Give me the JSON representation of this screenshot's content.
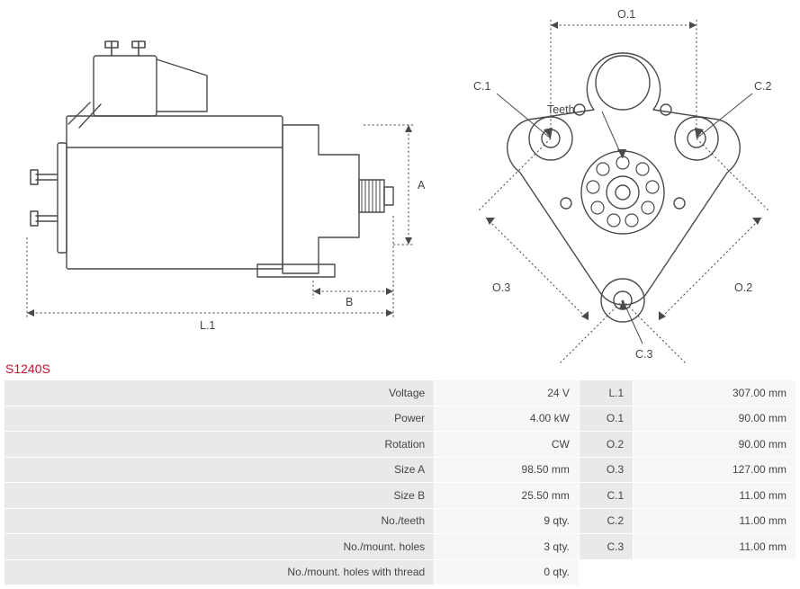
{
  "part_number": "S1240S",
  "diagram": {
    "stroke": "#4a4a4a",
    "stroke_width": 1.4,
    "dash": "2.2,2.6",
    "labels": {
      "A": "A",
      "B": "B",
      "L1": "L.1",
      "O1": "O.1",
      "O2": "O.2",
      "O3": "O.3",
      "C1": "C.1",
      "C2": "C.2",
      "C3": "C.3",
      "Teeth": "Teeth"
    }
  },
  "specs_left": [
    {
      "label": "Voltage",
      "value": "24 V"
    },
    {
      "label": "Power",
      "value": "4.00 kW"
    },
    {
      "label": "Rotation",
      "value": "CW"
    },
    {
      "label": "Size A",
      "value": "98.50 mm"
    },
    {
      "label": "Size B",
      "value": "25.50 mm"
    },
    {
      "label": "No./teeth",
      "value": "9 qty."
    },
    {
      "label": "No./mount. holes",
      "value": "3 qty."
    },
    {
      "label": "No./mount. holes with thread",
      "value": "0 qty."
    }
  ],
  "specs_right": [
    {
      "label": "L.1",
      "value": "307.00 mm"
    },
    {
      "label": "O.1",
      "value": "90.00 mm"
    },
    {
      "label": "O.2",
      "value": "90.00 mm"
    },
    {
      "label": "O.3",
      "value": "127.00 mm"
    },
    {
      "label": "C.1",
      "value": "11.00 mm"
    },
    {
      "label": "C.2",
      "value": "11.00 mm"
    },
    {
      "label": "C.3",
      "value": "11.00 mm"
    }
  ]
}
